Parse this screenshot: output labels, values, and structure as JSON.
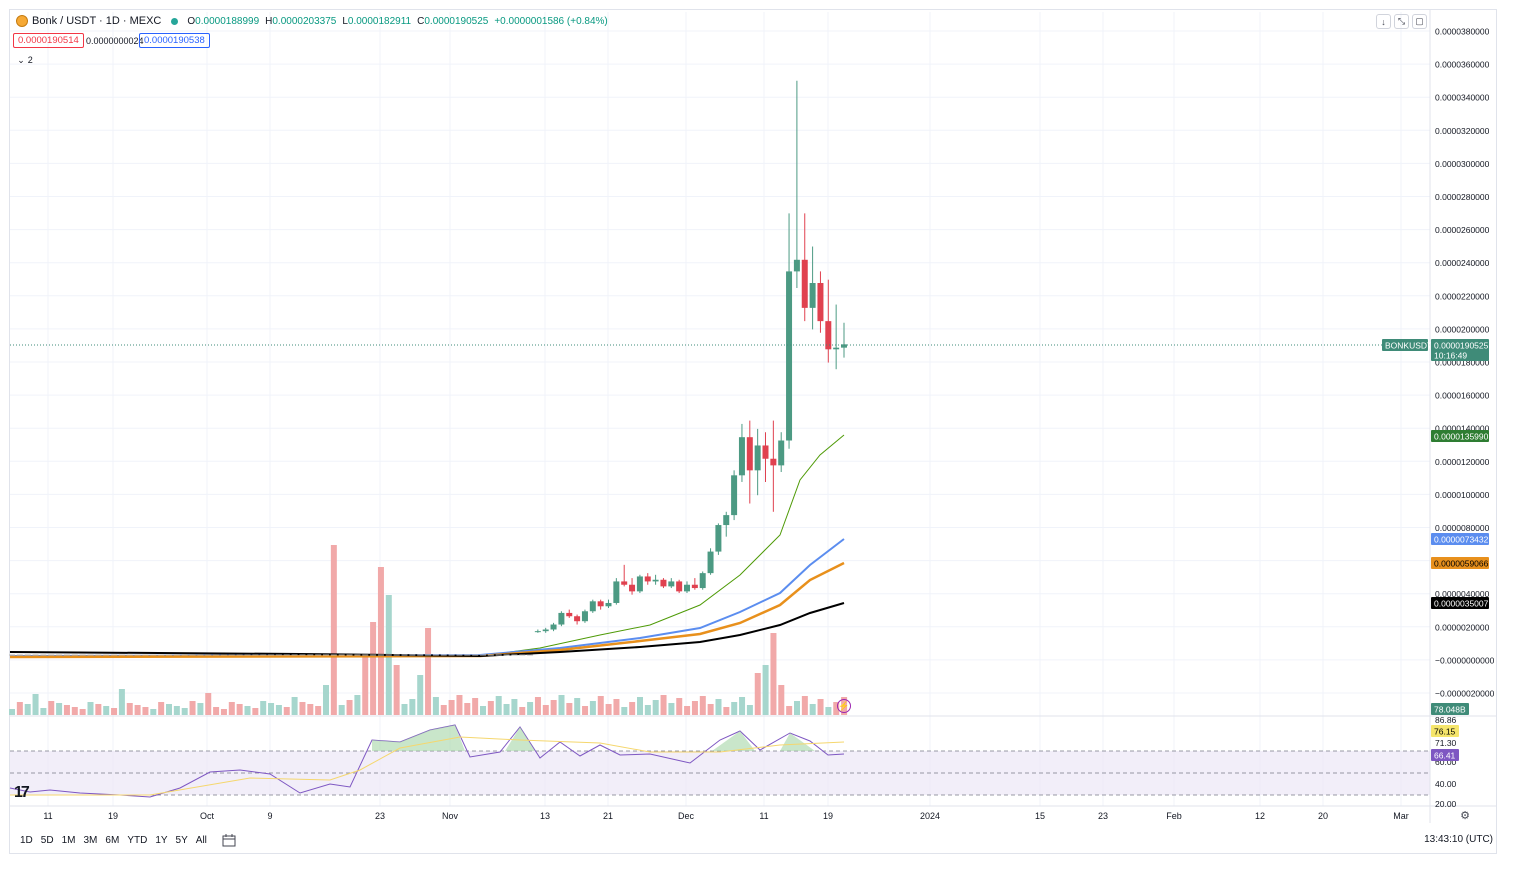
{
  "header": {
    "symbol": "Bonk / USDT · 1D · MEXC",
    "o_label": "O",
    "o": "0.0000188999",
    "h_label": "H",
    "h": "0.0000203375",
    "l_label": "L",
    "l": "0.0000182911",
    "c_label": "C",
    "c": "0.0000190525",
    "change": "+0.0000001586 (+0.84%)",
    "bid": "0.0000190514",
    "spread": "0.0000000024",
    "ask": "0.0000190538",
    "indicators_count": "2"
  },
  "window_controls": {
    "down": "↓",
    "expand": "⤡",
    "fullscreen": "▢"
  },
  "colors": {
    "up": "#26a69a",
    "down": "#ef5350",
    "ma20": "#4e9a06",
    "ma50": "#5b8def",
    "ma100": "#e8901c",
    "ma200": "#000000",
    "rsi": "#7e57c2",
    "rsi_ma": "#f5d76e",
    "price_tag": "#3f8b78"
  },
  "price_axis": {
    "ticks": [
      "0.0000380000",
      "0.0000360000",
      "0.0000340000",
      "0.0000320000",
      "0.0000300000",
      "0.0000280000",
      "0.0000260000",
      "0.0000240000",
      "0.0000220000",
      "0.0000200000",
      "0.0000180000",
      "0.0000160000",
      "0.0000140000",
      "0.0000120000",
      "0.0000100000",
      "0.0000080000",
      "0.0000060000",
      "0.0000040000",
      "0.0000020000",
      "−0.0000000000",
      "−0.0000020000"
    ]
  },
  "price_tags": {
    "symbol_label": "BONKUSDT",
    "last_price": "0.0000190525",
    "countdown": "10:16:49",
    "ma20": "0.0000135990",
    "ma50": "0.0000073432",
    "ma100": "0.0000059066",
    "ma200": "0.0000035007",
    "volume": "78.048B"
  },
  "rsi_axis": {
    "ticks": [
      "86.86",
      "71.30",
      "60.00",
      "40.00",
      "20.00"
    ],
    "rsi_value": "66.41",
    "rsi_ma_value": "76.15"
  },
  "time_axis": [
    "11",
    "19",
    "Oct",
    "9",
    "23",
    "Nov",
    "13",
    "21",
    "Dec",
    "11",
    "19",
    "2024",
    "15",
    "23",
    "Feb",
    "12",
    "20",
    "Mar"
  ],
  "bottom_bar": {
    "periods": [
      "1D",
      "5D",
      "1M",
      "3M",
      "6M",
      "YTD",
      "1Y",
      "5Y",
      "All"
    ],
    "clock": "13:43:10 (UTC)"
  },
  "chart_data": {
    "type": "candlestick",
    "title": "Bonk / USDT · 1D · MEXC",
    "ylim": [
      -3e-06,
      3.9e-05
    ],
    "series_candles_note": "daily OHLC, last ~40 candles; earlier flat near 0.0000005",
    "candles": [
      [
        1.8e-06,
        1.9e-06,
        1.7e-06,
        1.8e-06
      ],
      [
        1.8e-06,
        2e-06,
        1.7e-06,
        1.9e-06
      ],
      [
        1.9e-06,
        2.3e-06,
        1.8e-06,
        2.2e-06
      ],
      [
        2.2e-06,
        3e-06,
        2.1e-06,
        2.9e-06
      ],
      [
        2.9e-06,
        3.1e-06,
        2.6e-06,
        2.7e-06
      ],
      [
        2.7e-06,
        2.8e-06,
        2.2e-06,
        2.4e-06
      ],
      [
        2.4e-06,
        3.1e-06,
        2.3e-06,
        3e-06
      ],
      [
        3e-06,
        3.7e-06,
        2.9e-06,
        3.6e-06
      ],
      [
        3.6e-06,
        3.7e-06,
        3.1e-06,
        3.3e-06
      ],
      [
        3.3e-06,
        3.7e-06,
        3.2e-06,
        3.5e-06
      ],
      [
        3.5e-06,
        5e-06,
        3.4e-06,
        4.8e-06
      ],
      [
        4.8e-06,
        5.8e-06,
        4.5e-06,
        4.6e-06
      ],
      [
        4.6e-06,
        5e-06,
        4e-06,
        4.2e-06
      ],
      [
        4.2e-06,
        5.2e-06,
        4.1e-06,
        5.1e-06
      ],
      [
        5.1e-06,
        5.3e-06,
        4.6e-06,
        4.8e-06
      ],
      [
        4.8e-06,
        5.2e-06,
        4.6e-06,
        4.9e-06
      ],
      [
        4.9e-06,
        5e-06,
        4.4e-06,
        4.5e-06
      ],
      [
        4.5e-06,
        5e-06,
        4.4e-06,
        4.8e-06
      ],
      [
        4.8e-06,
        4.9e-06,
        4.1e-06,
        4.2e-06
      ],
      [
        4.2e-06,
        4.8e-06,
        4.1e-06,
        4.6e-06
      ],
      [
        4.6e-06,
        5e-06,
        4.3e-06,
        4.4e-06
      ],
      [
        4.4e-06,
        5.4e-06,
        4.3e-06,
        5.3e-06
      ],
      [
        5.3e-06,
        6.8e-06,
        5.2e-06,
        6.6e-06
      ],
      [
        6.6e-06,
        8.3e-06,
        6.4e-06,
        8.2e-06
      ],
      [
        8.2e-06,
        9e-06,
        7.5e-06,
        8.8e-06
      ],
      [
        8.8e-06,
        1.15e-05,
        8.5e-06,
        1.12e-05
      ],
      [
        1.12e-05,
        1.43e-05,
        1.08e-05,
        1.35e-05
      ],
      [
        1.35e-05,
        1.45e-05,
        9.5e-06,
        1.15e-05
      ],
      [
        1.15e-05,
        1.4e-05,
        1e-05,
        1.3e-05
      ],
      [
        1.3e-05,
        1.38e-05,
        1.08e-05,
        1.22e-05
      ],
      [
        1.22e-05,
        1.45e-05,
        9e-06,
        1.18e-05
      ],
      [
        1.18e-05,
        1.38e-05,
        1.14e-05,
        1.33e-05
      ],
      [
        1.33e-05,
        2.7e-05,
        1.28e-05,
        2.35e-05
      ],
      [
        2.35e-05,
        3.5e-05,
        2.25e-05,
        2.42e-05
      ],
      [
        2.42e-05,
        2.7e-05,
        2.05e-05,
        2.13e-05
      ],
      [
        2.13e-05,
        2.5e-05,
        2e-05,
        2.28e-05
      ],
      [
        2.28e-05,
        2.35e-05,
        1.98e-05,
        2.05e-05
      ],
      [
        2.05e-05,
        2.3e-05,
        1.8e-05,
        1.88e-05
      ],
      [
        1.88e-05,
        2.15e-05,
        1.76e-05,
        1.89e-05
      ],
      [
        1.89e-05,
        2.04e-05,
        1.83e-05,
        1.91e-05
      ]
    ],
    "moving_averages": {
      "ma20_last": 1.3599e-05,
      "ma50_last": 7.3432e-06,
      "ma100_last": 5.9066e-06,
      "ma200_last": 3.5007e-06
    },
    "rsi_last": 66.41,
    "rsi_ma_last": 76.15
  }
}
